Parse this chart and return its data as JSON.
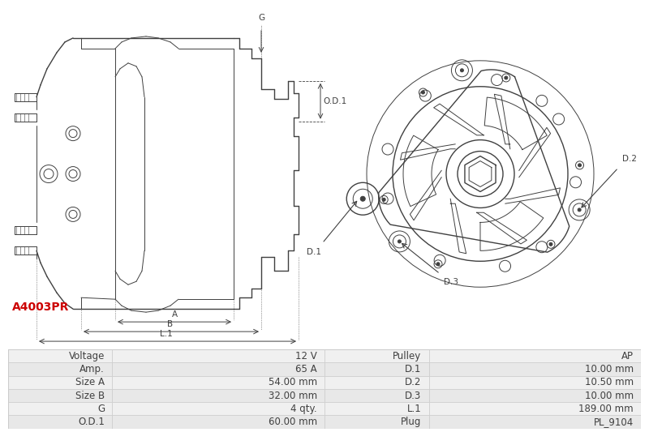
{
  "title": "A4003PR",
  "title_color": "#cc0000",
  "bg_color": "#ffffff",
  "line_color": "#404040",
  "dim_color": "#404040",
  "table_row_bg": [
    "#f0f0f0",
    "#e8e8e8"
  ],
  "table_border_color": "#cccccc",
  "table_data": [
    [
      "Voltage",
      "12 V",
      "Pulley",
      "AP"
    ],
    [
      "Amp.",
      "65 A",
      "D.1",
      "10.00 mm"
    ],
    [
      "Size A",
      "54.00 mm",
      "D.2",
      "10.50 mm"
    ],
    [
      "Size B",
      "32.00 mm",
      "D.3",
      "10.00 mm"
    ],
    [
      "G",
      "4 qty.",
      "L.1",
      "189.00 mm"
    ],
    [
      "O.D.1",
      "60.00 mm",
      "Plug",
      "PL_9104"
    ]
  ],
  "font_size_table": 8.5,
  "font_size_label": 7.5,
  "font_size_title": 10
}
